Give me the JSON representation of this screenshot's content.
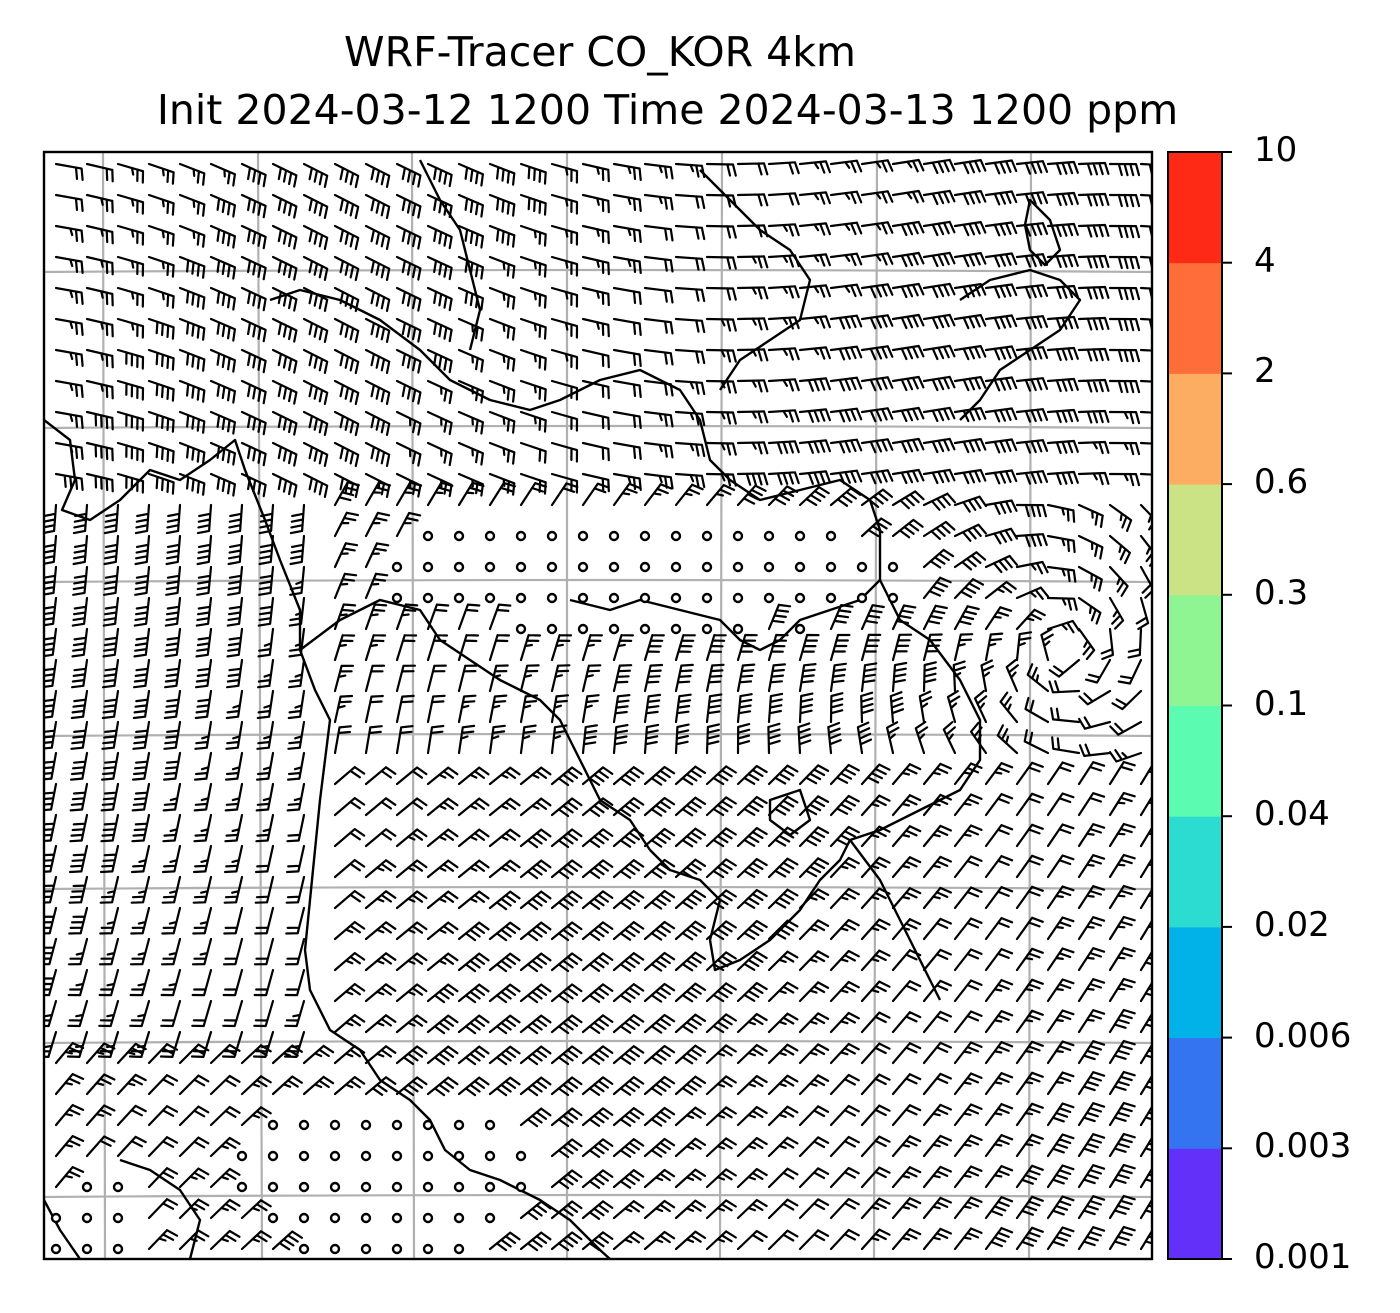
{
  "title": {
    "line1": "WRF-Tracer CO_KOR 4km",
    "line2": "Init 2024-03-12 1200 Time 2024-03-13 1200 ppm"
  },
  "colorbar": {
    "levels": [
      "0.001",
      "0.003",
      "0.006",
      "0.02",
      "0.04",
      "0.1",
      "0.3",
      "0.6",
      "2",
      "4",
      "10"
    ],
    "colors": [
      "#6330fa",
      "#3574f0",
      "#00b2e8",
      "#2cdcd0",
      "#5cfbb2",
      "#8ef592",
      "#cce385",
      "#fdad61",
      "#ff6e3a",
      "#ff2a15"
    ]
  },
  "map": {
    "gridlines": true,
    "frame_color": "#000000",
    "grid_color": "#b0b0b0",
    "field_plotted": "wind barbs with calm circles",
    "tracer_fill": "none visible"
  }
}
